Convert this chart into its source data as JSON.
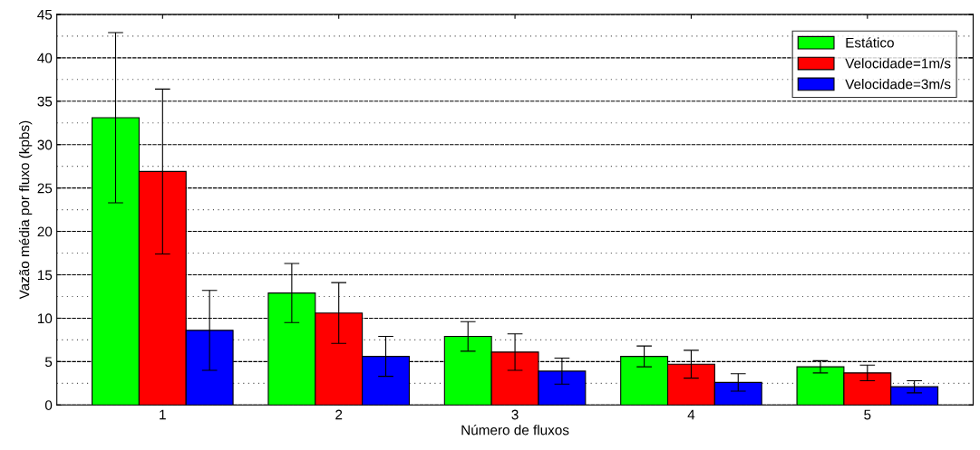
{
  "chart_data": {
    "type": "bar",
    "xlabel": "Número de fluxos",
    "ylabel": "Vazão média por fluxo (kpbs)",
    "categories": [
      "1",
      "2",
      "3",
      "4",
      "5"
    ],
    "series": [
      {
        "name": "Estático",
        "color": "#00ff00",
        "values": [
          33.1,
          12.9,
          7.9,
          5.6,
          4.4
        ],
        "errors": [
          9.8,
          3.4,
          1.7,
          1.2,
          0.7
        ]
      },
      {
        "name": "Velocidade=1m/s",
        "color": "#ff0000",
        "values": [
          26.9,
          10.6,
          6.1,
          4.7,
          3.7
        ],
        "errors": [
          9.5,
          3.5,
          2.1,
          1.6,
          0.9
        ]
      },
      {
        "name": "Velocidade=3m/s",
        "color": "#0000ff",
        "values": [
          8.6,
          5.6,
          3.9,
          2.6,
          2.1
        ],
        "errors": [
          4.6,
          2.3,
          1.5,
          1.0,
          0.7
        ]
      }
    ],
    "ylim": [
      0,
      45
    ],
    "yticks": [
      0,
      5,
      10,
      15,
      20,
      25,
      30,
      35,
      40,
      45
    ],
    "grid": "y",
    "legend": "top right"
  }
}
